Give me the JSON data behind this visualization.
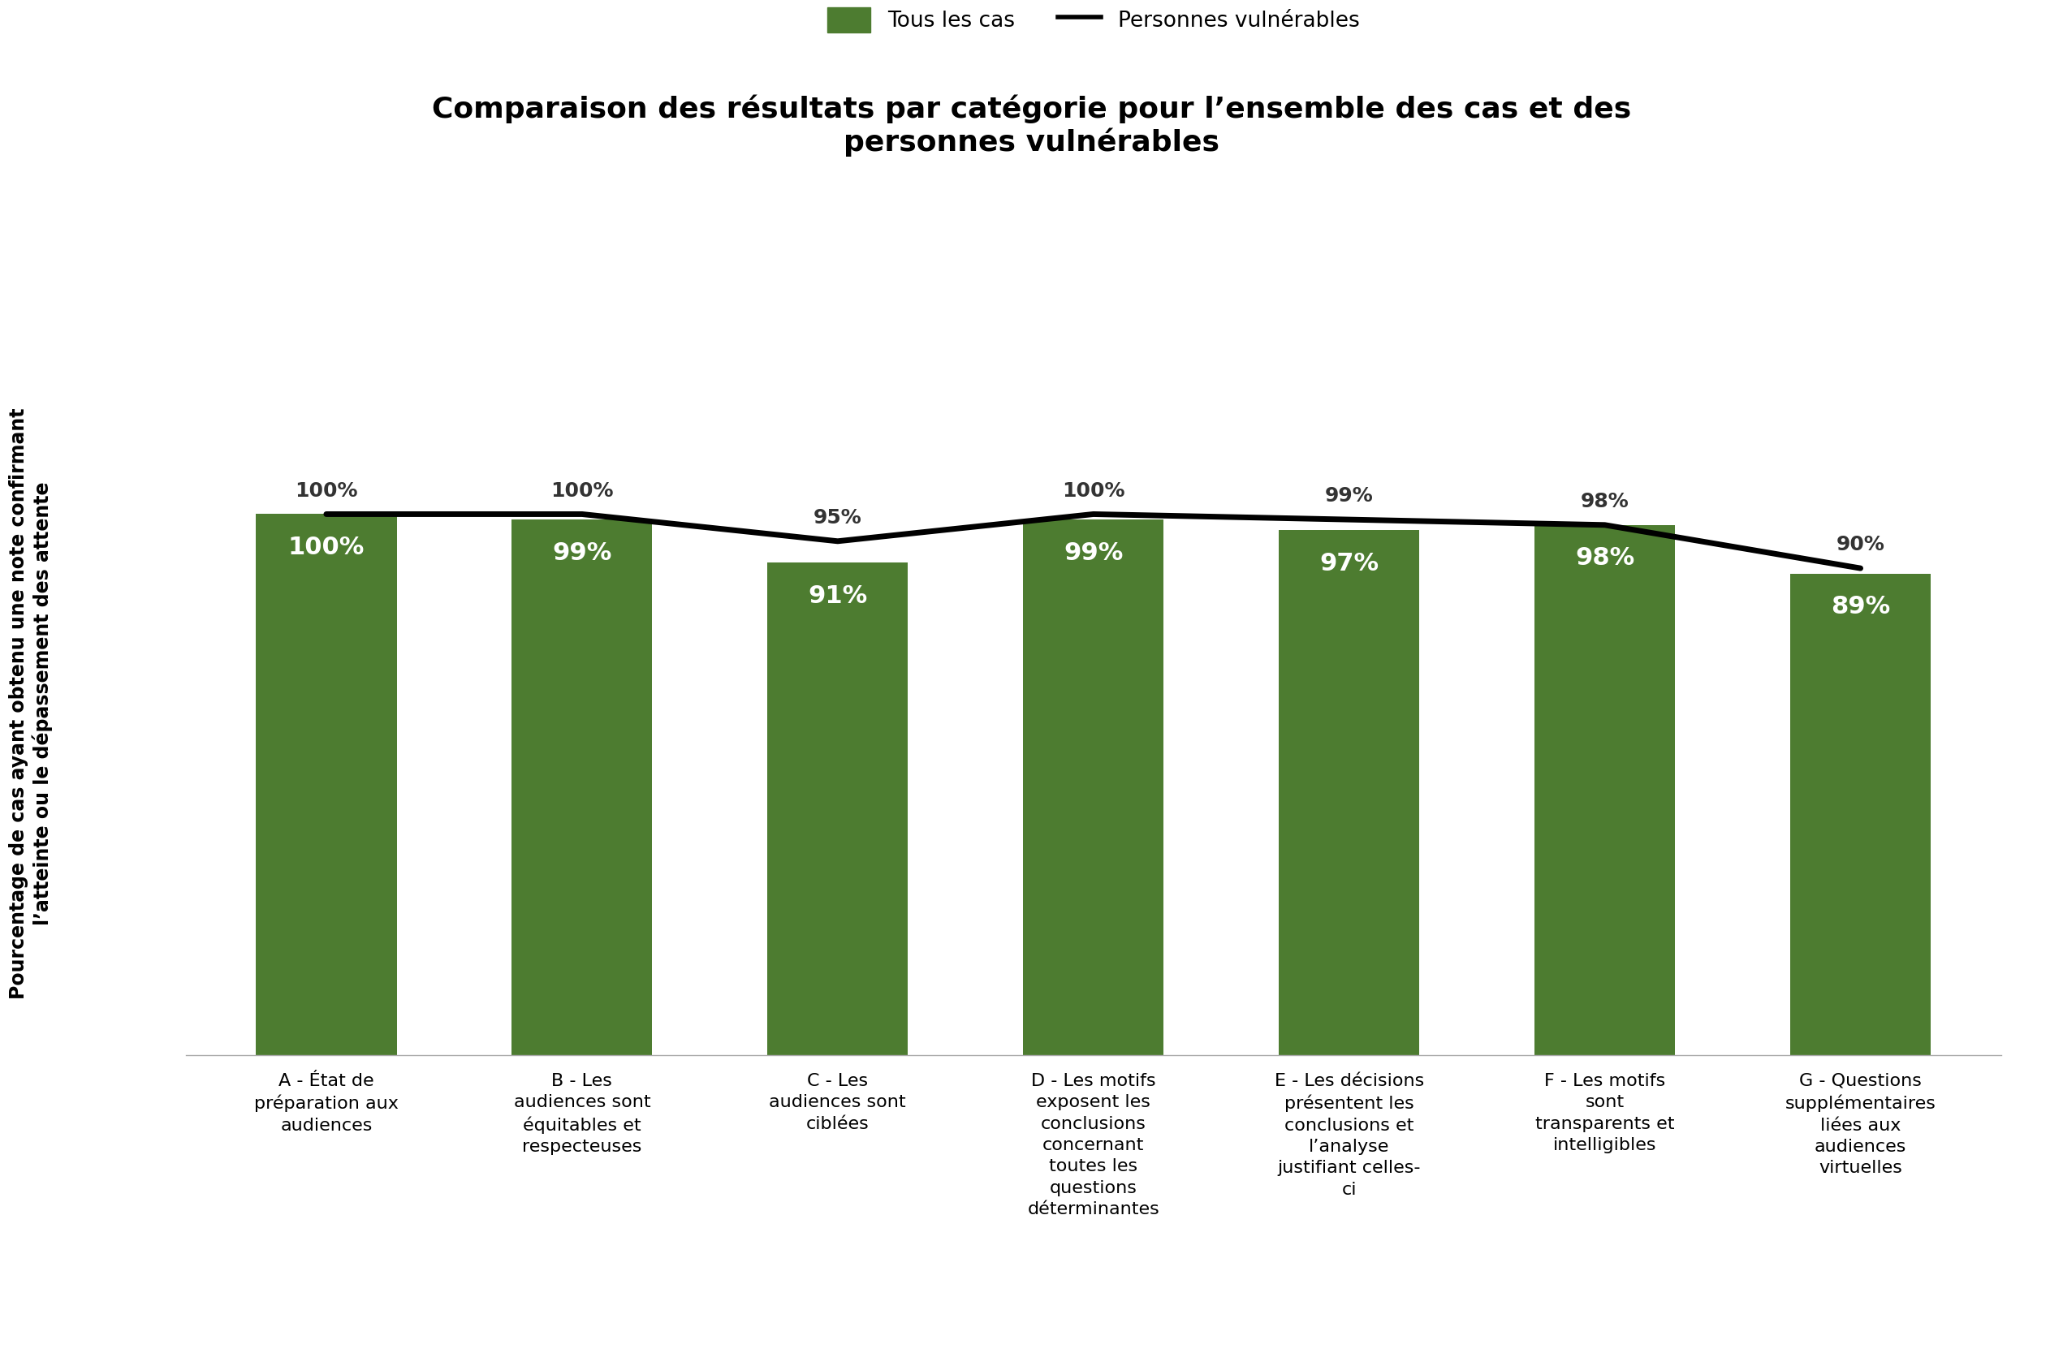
{
  "title": "Comparaison des résultats par catégorie pour l’ensemble des cas et des\npersonnes vulnérables",
  "ylabel": "Pourcentage de cas ayant obtenu une note confirmant\nl’atteinte ou le dépassement des attente",
  "categories": [
    "A - État de\npréparation aux\naudiences",
    "B - Les\naudiences sont\néquitables et\nrespecteuses",
    "C - Les\naudiences sont\nciblées",
    "D - Les motifs\nexposent les\nconclusions\nconcernant\ntoutes les\nquestions\ndéterminantes",
    "E - Les décisions\nprésentent les\nconclusions et\nl’analyse\njustifiant celles-\nci",
    "F - Les motifs\nsont\ntransparents et\nintelligibles",
    "G - Questions\nsupplémentaires\nliées aux\naudiences\nvirtuelles"
  ],
  "bar_values": [
    100,
    99,
    91,
    99,
    97,
    98,
    89
  ],
  "line_values": [
    100,
    100,
    95,
    100,
    99,
    98,
    90
  ],
  "bar_color": "#4d7c30",
  "line_color": "#000000",
  "bar_label_color": "#ffffff",
  "line_label_color": "#333333",
  "ylim": [
    0,
    130
  ],
  "legend_bar_label": "Tous les cas",
  "legend_line_label": "Personnes vulnérables",
  "title_fontsize": 26,
  "ylabel_fontsize": 17,
  "tick_fontsize": 16,
  "bar_label_fontsize": 22,
  "line_label_fontsize": 18,
  "legend_fontsize": 19,
  "background_color": "#ffffff"
}
